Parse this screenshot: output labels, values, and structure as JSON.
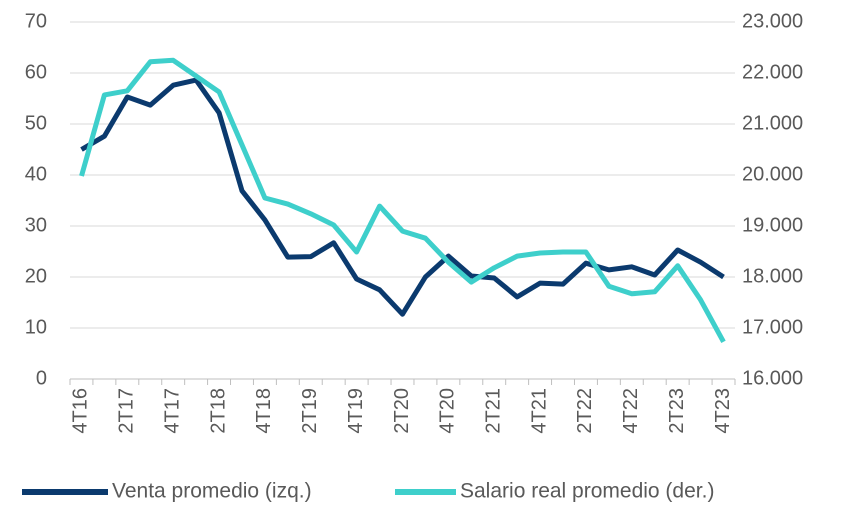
{
  "chart_data": {
    "type": "line",
    "categories": [
      "4T16",
      null,
      "2T17",
      null,
      "4T17",
      null,
      "2T18",
      null,
      "4T18",
      null,
      "2T19",
      null,
      "4T19",
      null,
      "2T20",
      null,
      "4T20",
      null,
      "2T21",
      null,
      "4T21",
      null,
      "2T22",
      null,
      "4T22",
      null,
      "2T23",
      null,
      "4T23"
    ],
    "series": [
      {
        "name": "Venta promedio (izq.)",
        "color": "#0b3a6e",
        "values": [
          45,
          47.6,
          55.3,
          53.7,
          57.6,
          58.6,
          52.2,
          36.9,
          31.2,
          23.9,
          24,
          26.7,
          19.6,
          17.5,
          12.7,
          20,
          24.1,
          20.2,
          19.8,
          16.1,
          18.8,
          18.6,
          22.7,
          21.4,
          22,
          20.4,
          25.3,
          22.9,
          20
        ]
      },
      {
        "name": "Salario real promedio (der.)",
        "color": "#3ecfcb",
        "axis": "y2",
        "values": [
          19980,
          21570,
          21650,
          22220,
          22250,
          21940,
          21630,
          20590,
          19550,
          19430,
          19240,
          19020,
          18490,
          19390,
          18900,
          18760,
          18290,
          17900,
          18180,
          18410,
          18470,
          18490,
          18490,
          17820,
          17670,
          17710,
          18220,
          17550,
          16730
        ]
      }
    ],
    "ylim": [
      0,
      70
    ],
    "yticks": [
      0,
      10,
      20,
      30,
      40,
      50,
      60,
      70
    ],
    "y2lim": [
      16000,
      23000
    ],
    "y2ticks": [
      {
        "value": 16000,
        "label": "16.000"
      },
      {
        "value": 17000,
        "label": "17.000"
      },
      {
        "value": 18000,
        "label": "18.000"
      },
      {
        "value": 19000,
        "label": "19.000"
      },
      {
        "value": 20000,
        "label": "20.000"
      },
      {
        "value": 21000,
        "label": "21.000"
      },
      {
        "value": 22000,
        "label": "22.000"
      },
      {
        "value": 23000,
        "label": "23.000"
      }
    ],
    "grid": true,
    "legend": "bottom"
  }
}
